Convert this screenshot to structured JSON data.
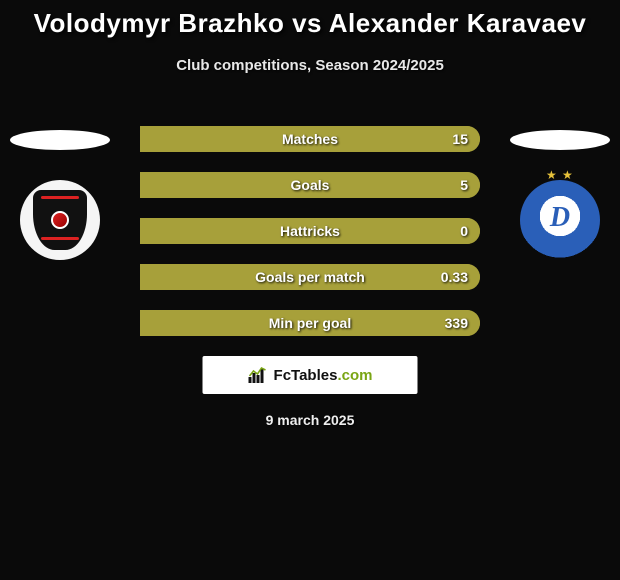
{
  "title": "Volodymyr Brazhko vs Alexander Karavaev",
  "subtitle": "Club competitions, Season 2024/2025",
  "date": "9 march 2025",
  "colors": {
    "bar_left": "#a7a03a",
    "bar_right": "#a7a03a",
    "bar_track": "#a7a03a",
    "page_bg": "#0a0a0a",
    "halo": "#ffffff",
    "crest_left_bg": "#f5f5f5",
    "crest_left_shield": "#111111",
    "crest_left_accent": "#cc2222",
    "crest_right_ring": "#2a5fb8",
    "crest_right_letter": "#2a5fb8",
    "crest_right_star": "#e7c23a",
    "brand_accent": "#7aa514"
  },
  "crest_right_letter": "D",
  "bars": [
    {
      "label": "Matches",
      "value_right": "15",
      "left_pct": 0,
      "right_pct": 100
    },
    {
      "label": "Goals",
      "value_right": "5",
      "left_pct": 0,
      "right_pct": 100
    },
    {
      "label": "Hattricks",
      "value_right": "0",
      "left_pct": 0,
      "right_pct": 100
    },
    {
      "label": "Goals per match",
      "value_right": "0.33",
      "left_pct": 0,
      "right_pct": 100
    },
    {
      "label": "Min per goal",
      "value_right": "339",
      "left_pct": 0,
      "right_pct": 100
    }
  ],
  "brand": {
    "name_a": "FcTables",
    "name_b": ".com"
  }
}
